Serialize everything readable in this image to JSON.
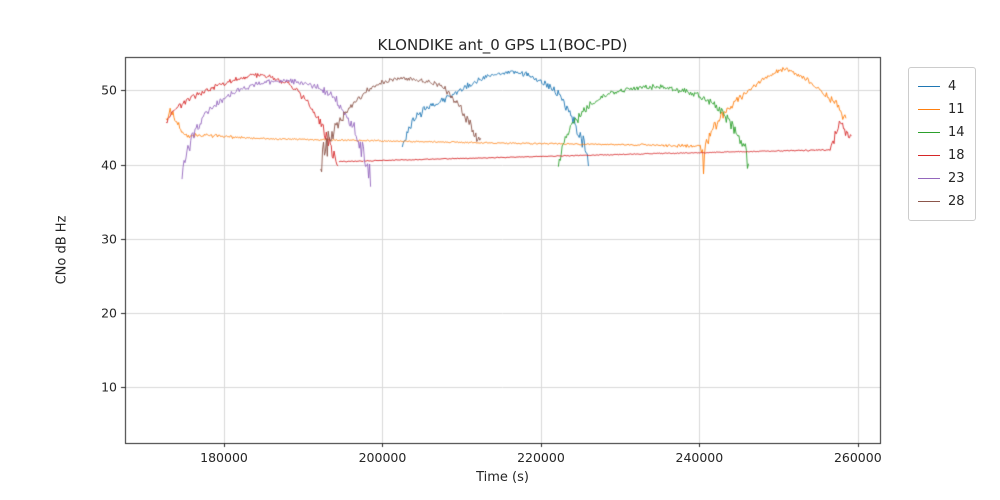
{
  "chart_data": {
    "type": "line",
    "title": "KLONDIKE ant_0 GPS L1(BOC-PD)",
    "xlabel": "Time (s)",
    "ylabel": "CNo dB Hz",
    "xlim": [
      167500,
      262800
    ],
    "ylim": [
      2.5,
      54.5
    ],
    "x_ticks": [
      180000,
      200000,
      220000,
      240000,
      260000
    ],
    "y_ticks": [
      10,
      20,
      30,
      40,
      50
    ],
    "grid": true,
    "grid_color": "#d9d9d9",
    "spine_color": "#262626",
    "legend_position": "upper right outside",
    "series": [
      {
        "name": "4",
        "color": "#1f77b4",
        "segments": [
          [
            [
              202500,
              42.5,
              2.0
            ],
            [
              203200,
              44.5,
              1.2
            ],
            [
              204000,
              46.0,
              0.9
            ],
            [
              205500,
              47.5,
              0.7
            ],
            [
              207000,
              48.3,
              0.6
            ],
            [
              209000,
              49.6,
              0.5
            ],
            [
              211000,
              50.8,
              0.45
            ],
            [
              213000,
              51.8,
              0.4
            ],
            [
              215000,
              52.3,
              0.35
            ],
            [
              216500,
              52.5,
              0.35
            ],
            [
              218000,
              52.2,
              0.4
            ],
            [
              219500,
              51.6,
              0.45
            ],
            [
              221000,
              50.6,
              0.5
            ],
            [
              222300,
              49.4,
              0.6
            ],
            [
              223400,
              47.5,
              0.8
            ],
            [
              224300,
              45.5,
              1.0
            ],
            [
              225100,
              43.5,
              1.4
            ],
            [
              225700,
              41.5,
              1.8
            ],
            [
              226000,
              40.8,
              1.5
            ]
          ]
        ]
      },
      {
        "name": "11",
        "color": "#ff7f0e",
        "segments": [
          [
            [
              172700,
              46.3,
              0.8
            ],
            [
              173200,
              47.2,
              0.8
            ],
            [
              173800,
              46.0,
              0.9
            ],
            [
              174400,
              44.8,
              0.8
            ],
            [
              175000,
              44.0,
              0.4
            ],
            [
              185000,
              43.5,
              0.12
            ],
            [
              200000,
              43.2,
              0.12
            ],
            [
              215000,
              42.9,
              0.12
            ],
            [
              230000,
              42.7,
              0.12
            ],
            [
              240100,
              42.5,
              0.3
            ],
            [
              240400,
              40.0,
              2.4
            ],
            [
              240900,
              42.5,
              1.5
            ],
            [
              241500,
              44.5,
              1.0
            ],
            [
              242500,
              46.2,
              0.8
            ],
            [
              244000,
              48.0,
              0.6
            ],
            [
              246000,
              49.8,
              0.5
            ],
            [
              248000,
              51.5,
              0.45
            ],
            [
              249500,
              52.4,
              0.4
            ],
            [
              250800,
              52.8,
              0.4
            ],
            [
              252000,
              52.4,
              0.4
            ],
            [
              253500,
              51.5,
              0.45
            ],
            [
              255000,
              50.3,
              0.5
            ],
            [
              256300,
              49.2,
              0.6
            ],
            [
              257300,
              48.2,
              0.8
            ],
            [
              258100,
              46.8,
              1.2
            ],
            [
              258500,
              45.8,
              1.2
            ]
          ]
        ]
      },
      {
        "name": "14",
        "color": "#2ca02c",
        "segments": [
          [
            [
              222200,
              40.0,
              2.0
            ],
            [
              222800,
              42.5,
              1.3
            ],
            [
              223600,
              44.8,
              1.0
            ],
            [
              224800,
              46.5,
              0.8
            ],
            [
              226200,
              48.0,
              0.6
            ],
            [
              228000,
              49.3,
              0.5
            ],
            [
              230000,
              50.0,
              0.45
            ],
            [
              232000,
              50.4,
              0.45
            ],
            [
              234500,
              50.5,
              0.45
            ],
            [
              236500,
              50.2,
              0.45
            ],
            [
              238500,
              49.8,
              0.5
            ],
            [
              240200,
              49.2,
              0.5
            ],
            [
              241500,
              48.4,
              0.6
            ],
            [
              242800,
              47.2,
              0.8
            ],
            [
              244000,
              45.5,
              1.0
            ],
            [
              245000,
              43.5,
              1.4
            ],
            [
              245800,
              41.5,
              1.8
            ],
            [
              246200,
              40.5,
              1.6
            ]
          ]
        ]
      },
      {
        "name": "18",
        "color": "#d62728",
        "segments": [
          [
            [
              172700,
              45.8,
              1.0
            ],
            [
              173300,
              46.8,
              0.8
            ],
            [
              174200,
              47.8,
              0.7
            ],
            [
              175500,
              48.8,
              0.6
            ],
            [
              177000,
              49.6,
              0.5
            ],
            [
              179000,
              50.5,
              0.45
            ],
            [
              181000,
              51.3,
              0.4
            ],
            [
              183000,
              51.9,
              0.4
            ],
            [
              184500,
              52.1,
              0.4
            ],
            [
              186000,
              51.8,
              0.4
            ],
            [
              187500,
              51.2,
              0.45
            ],
            [
              189000,
              50.2,
              0.5
            ],
            [
              190300,
              48.8,
              0.6
            ],
            [
              191400,
              47.0,
              0.8
            ],
            [
              192400,
              45.0,
              1.0
            ],
            [
              193300,
              42.8,
              1.3
            ],
            [
              194000,
              41.0,
              1.5
            ],
            [
              194400,
              40.3,
              1.0
            ]
          ],
          [
            [
              194500,
              40.4,
              0.1
            ],
            [
              205000,
              40.7,
              0.08
            ],
            [
              220000,
              41.1,
              0.08
            ],
            [
              235000,
              41.5,
              0.08
            ],
            [
              248000,
              41.8,
              0.08
            ],
            [
              256500,
              42.0,
              0.15
            ],
            [
              257000,
              43.5,
              1.0
            ],
            [
              257400,
              45.0,
              1.1
            ],
            [
              257800,
              45.8,
              1.0
            ],
            [
              258200,
              45.0,
              1.0
            ],
            [
              258700,
              43.8,
              1.0
            ],
            [
              259200,
              44.3,
              0.8
            ]
          ]
        ]
      },
      {
        "name": "23",
        "color": "#9467bd",
        "segments": [
          [
            [
              174700,
              39.0,
              2.5
            ],
            [
              175200,
              41.5,
              1.8
            ],
            [
              175800,
              43.5,
              1.2
            ],
            [
              176600,
              45.2,
              0.9
            ],
            [
              177600,
              46.8,
              0.7
            ],
            [
              179000,
              48.2,
              0.6
            ],
            [
              180800,
              49.4,
              0.5
            ],
            [
              182800,
              50.4,
              0.45
            ],
            [
              184800,
              51.0,
              0.4
            ],
            [
              186800,
              51.3,
              0.4
            ],
            [
              188800,
              51.2,
              0.4
            ],
            [
              190500,
              50.9,
              0.45
            ],
            [
              191800,
              50.5,
              0.5
            ],
            [
              193000,
              49.8,
              0.55
            ],
            [
              194200,
              48.6,
              0.7
            ],
            [
              195300,
              47.0,
              0.9
            ],
            [
              196300,
              45.0,
              1.1
            ],
            [
              197200,
              42.8,
              1.4
            ],
            [
              198000,
              40.3,
              1.8
            ],
            [
              198500,
              38.2,
              1.8
            ]
          ]
        ]
      },
      {
        "name": "28",
        "color": "#8c564b",
        "segments": [
          [
            [
              192200,
              40.0,
              2.8
            ],
            [
              192800,
              42.0,
              2.2
            ],
            [
              193500,
              44.0,
              1.5
            ],
            [
              194400,
              45.8,
              1.1
            ],
            [
              195500,
              47.3,
              0.8
            ],
            [
              196800,
              48.8,
              0.6
            ],
            [
              198200,
              50.0,
              0.5
            ],
            [
              199800,
              51.0,
              0.45
            ],
            [
              201300,
              51.5,
              0.4
            ],
            [
              203000,
              51.6,
              0.4
            ],
            [
              204800,
              51.4,
              0.4
            ],
            [
              206200,
              51.1,
              0.45
            ],
            [
              207400,
              50.6,
              0.5
            ],
            [
              208400,
              49.7,
              0.6
            ],
            [
              209400,
              48.3,
              0.7
            ],
            [
              210300,
              46.8,
              0.9
            ],
            [
              211200,
              45.2,
              1.0
            ],
            [
              211900,
              43.8,
              1.1
            ],
            [
              212400,
              42.8,
              1.0
            ]
          ]
        ]
      }
    ]
  }
}
